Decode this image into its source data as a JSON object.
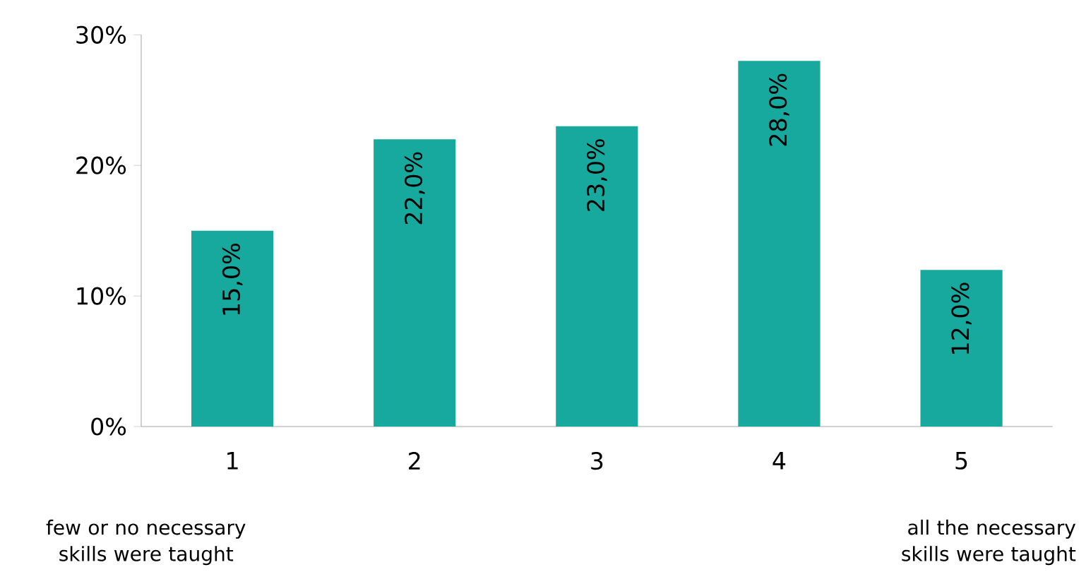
{
  "chart_data": {
    "type": "bar",
    "categories": [
      "1",
      "2",
      "3",
      "4",
      "5"
    ],
    "values": [
      15,
      22,
      23,
      28,
      12
    ],
    "value_labels": [
      "15,0%",
      "22,0%",
      "23,0%",
      "28,0%",
      "12,0%"
    ],
    "color": "#17a89e",
    "ylim": [
      0,
      30
    ],
    "yticks": [
      {
        "value": 0,
        "label": "0%"
      },
      {
        "value": 10,
        "label": "10%"
      },
      {
        "value": 20,
        "label": "20%"
      },
      {
        "value": 30,
        "label": "30%"
      }
    ],
    "annotations": [
      "few or no necessary skills were taught",
      "all the necessary skills were taught"
    ]
  }
}
